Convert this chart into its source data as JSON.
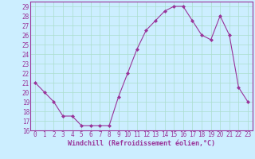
{
  "x": [
    0,
    1,
    2,
    3,
    4,
    5,
    6,
    7,
    8,
    9,
    10,
    11,
    12,
    13,
    14,
    15,
    16,
    17,
    18,
    19,
    20,
    21,
    22,
    23
  ],
  "y": [
    21,
    20,
    19,
    17.5,
    17.5,
    16.5,
    16.5,
    16.5,
    16.5,
    19.5,
    22,
    24.5,
    26.5,
    27.5,
    28.5,
    29,
    29,
    27.5,
    26,
    25.5,
    28,
    26,
    20.5,
    19
  ],
  "line_color": "#993399",
  "marker": "D",
  "marker_size": 2.0,
  "bg_color": "#cceeff",
  "grid_color": "#aaddcc",
  "xlabel": "Windchill (Refroidissement éolien,°C)",
  "xlabel_color": "#993399",
  "tick_color": "#993399",
  "xlim": [
    -0.5,
    23.5
  ],
  "ylim": [
    16,
    29.5
  ],
  "yticks": [
    16,
    17,
    18,
    19,
    20,
    21,
    22,
    23,
    24,
    25,
    26,
    27,
    28,
    29
  ],
  "xticks": [
    0,
    1,
    2,
    3,
    4,
    5,
    6,
    7,
    8,
    9,
    10,
    11,
    12,
    13,
    14,
    15,
    16,
    17,
    18,
    19,
    20,
    21,
    22,
    23
  ],
  "spine_color": "#993399",
  "label_fontsize": 6,
  "tick_fontsize": 5.5
}
